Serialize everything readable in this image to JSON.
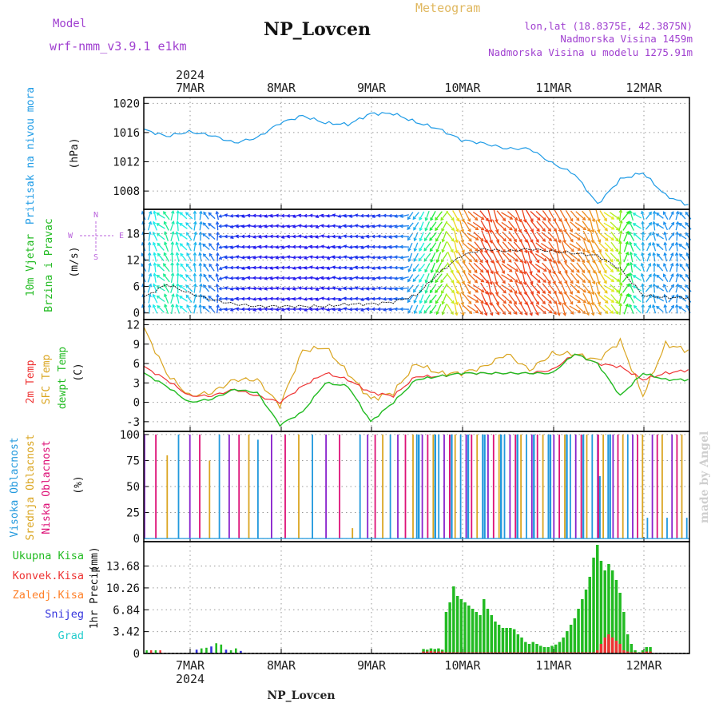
{
  "header": {
    "model_label": "Model",
    "model_name": "wrf-nmm_v3.9.1 e1km",
    "station": "NP_Lovcen",
    "meteogram": "Meteogram",
    "lonlat": "lon,lat (18.8375E, 42.3875N)",
    "elevation": "Nadmorska Visina 1459m",
    "model_elevation": "Nadmorska Visina u modelu 1275.91m",
    "watermark": "made by Angel",
    "footer_station": "NP_Lovcen"
  },
  "time_axis": {
    "year": "2024",
    "days": [
      "7MAR",
      "8MAR",
      "9MAR",
      "10MAR",
      "11MAR",
      "12MAR"
    ]
  },
  "colors": {
    "pressure": "#1e9be6",
    "temp2m": "#ee3333",
    "sfc_temp": "#daa520",
    "dewpoint": "#22bb22",
    "cloud_high": "#2299dd",
    "cloud_mid": "#daa520",
    "cloud_low": "#dd1177",
    "cloud_extra": "#8822cc",
    "rain_total": "#22bb22",
    "rain_conv": "#ee3333",
    "freezing": "#ff7f27",
    "snow": "#3333dd",
    "graupel": "#22cccc",
    "wind_label": "#22bb22",
    "compass": "#bb66dd"
  },
  "chart_data": [
    {
      "type": "line",
      "name": "pressure",
      "ylabel_1": "Pritisak na nivou mora",
      "ylabel_2": "(hPa)",
      "ylim": [
        1005.5,
        1020.8
      ],
      "yticks": [
        "1008",
        "1012",
        "1016",
        "1020"
      ],
      "x": [
        0,
        6,
        12,
        18,
        24,
        30,
        36,
        42,
        48,
        54,
        60,
        66,
        72,
        78,
        84,
        90,
        96,
        102,
        108,
        114,
        120,
        126,
        132,
        138,
        144
      ],
      "series": [
        {
          "values": [
            1016.4,
            1015.5,
            1016.1,
            1015.6,
            1014.6,
            1015.3,
            1017.3,
            1018.3,
            1017.3,
            1017.1,
            1018.6,
            1018.6,
            1017.4,
            1016.5,
            1015.0,
            1014.5,
            1013.8,
            1013.8,
            1011.8,
            1010.3,
            1006.2,
            1009.6,
            1010.5,
            1007.4,
            1006.1
          ]
        }
      ]
    },
    {
      "type": "line",
      "name": "wind",
      "ylabel_1": "10m Vjetar",
      "ylabel_2": "Brzina i Pravac",
      "ylabel_3": "(m/s)",
      "compass": {
        "n": "N",
        "s": "S",
        "e": "E",
        "w": "W"
      },
      "ylim": [
        -1.5,
        23.5
      ],
      "yticks": [
        "0",
        "6",
        "12",
        "18"
      ],
      "x": [
        0,
        6,
        12,
        18,
        24,
        30,
        36,
        42,
        48,
        54,
        60,
        66,
        72,
        78,
        84,
        90,
        96,
        102,
        108,
        114,
        120,
        126,
        132,
        138,
        144
      ],
      "series": [
        {
          "values": [
            3.5,
            6.5,
            4.5,
            3.0,
            2.0,
            1.5,
            1.5,
            1.5,
            1.5,
            2.0,
            2.0,
            2.5,
            4.0,
            9.0,
            13.0,
            14.5,
            14.0,
            14.5,
            14.0,
            13.5,
            13.0,
            10.0,
            4.0,
            3.5,
            3.5
          ]
        }
      ]
    },
    {
      "type": "line",
      "name": "temperature",
      "ylabel_1": "2m Temp",
      "ylabel_2": "SFC Temp",
      "ylabel_3": "dewpt Temp",
      "ylabel_4": "(C)",
      "ylim": [
        -4.5,
        12.8
      ],
      "yticks": [
        "-3",
        "0",
        "3",
        "6",
        "9",
        "12"
      ],
      "x": [
        0,
        6,
        12,
        18,
        24,
        30,
        36,
        42,
        48,
        54,
        60,
        66,
        72,
        78,
        84,
        90,
        96,
        102,
        108,
        114,
        120,
        126,
        132,
        138,
        144
      ],
      "series": [
        {
          "name": "2m Temp",
          "values": [
            5.5,
            3.5,
            1.0,
            1.0,
            2.0,
            1.0,
            0.0,
            2.5,
            4.5,
            3.5,
            1.5,
            1.0,
            4.0,
            4.0,
            4.5,
            4.5,
            4.5,
            4.5,
            5.0,
            7.5,
            6.0,
            5.5,
            3.5,
            4.5,
            5.0
          ]
        },
        {
          "name": "SFC Temp",
          "values": [
            11.5,
            4.5,
            1.0,
            1.5,
            3.5,
            3.5,
            -0.5,
            8.0,
            8.5,
            4.5,
            0.5,
            1.5,
            6.0,
            4.5,
            4.5,
            5.5,
            7.5,
            5.0,
            7.5,
            7.5,
            6.5,
            9.5,
            1.0,
            9.0,
            8.0
          ]
        },
        {
          "name": "dewpt Temp",
          "values": [
            4.5,
            2.5,
            0.0,
            0.5,
            2.0,
            1.5,
            -3.5,
            -1.5,
            3.0,
            2.5,
            -3.0,
            0.0,
            3.5,
            4.0,
            4.5,
            4.5,
            4.5,
            4.5,
            4.5,
            7.5,
            6.0,
            1.0,
            4.5,
            3.5,
            3.5
          ]
        }
      ]
    },
    {
      "type": "bar",
      "name": "cloud",
      "ylabel_1": "Visoka Oblacnost",
      "ylabel_2": "Srednja Oblacnost",
      "ylabel_3": "Niska Oblacnost",
      "ylabel_4": "(%)",
      "ylim": [
        -3,
        103
      ],
      "yticks": [
        "0",
        "25",
        "50",
        "75",
        "100"
      ],
      "series": [
        {
          "name": "Visoka Oblacnost",
          "values": [
            100,
            100,
            100,
            100,
            100,
            100,
            100,
            100,
            100,
            100,
            95,
            95,
            100,
            100,
            100,
            100,
            100,
            100,
            100,
            100,
            100,
            100,
            100,
            100,
            100,
            100,
            100,
            100,
            100,
            100,
            100,
            100,
            100,
            100,
            100,
            100,
            100,
            100,
            100,
            100,
            100,
            100,
            100,
            100,
            100,
            100,
            100,
            100,
            100,
            100,
            100,
            100,
            100,
            100,
            100,
            100,
            100,
            100,
            65,
            100,
            60,
            100,
            100,
            100,
            100,
            100,
            100,
            100,
            100,
            100,
            15,
            20,
            20,
            20,
            20,
            20,
            20,
            20,
            20,
            20,
            20,
            20,
            20,
            20
          ]
        },
        {
          "name": "Srednja Oblacnost",
          "values": [
            75,
            100,
            80,
            100,
            100,
            100,
            75,
            100,
            100,
            100,
            100,
            10,
            100,
            100,
            100,
            100,
            100,
            100,
            10,
            100,
            100,
            100,
            100,
            100,
            100,
            100,
            100,
            100,
            100,
            100,
            100,
            100,
            100,
            100,
            100,
            100,
            100,
            100,
            100,
            100,
            100,
            100,
            100,
            100,
            100,
            100,
            100,
            100,
            100,
            100,
            100,
            100,
            100,
            100,
            100,
            100,
            100,
            100,
            100,
            100,
            100,
            100,
            100,
            100,
            100,
            100,
            100,
            100,
            100,
            100,
            100,
            100,
            100,
            100,
            100,
            100,
            100,
            100,
            100,
            100,
            100,
            100,
            100,
            100
          ]
        },
        {
          "name": "Niska Oblacnost",
          "values": [
            90,
            100,
            100,
            10,
            100,
            100,
            5,
            100,
            100,
            100,
            100,
            100,
            95,
            100,
            100,
            100,
            100,
            100,
            100,
            100,
            100,
            100,
            100,
            100,
            100,
            100,
            100,
            100,
            100,
            100,
            100,
            100,
            100,
            100,
            100,
            100,
            100,
            100,
            100,
            100,
            100,
            100,
            100,
            100,
            100,
            100,
            100,
            100,
            100,
            100,
            100,
            100,
            100,
            100,
            100,
            100,
            100,
            100,
            100,
            100,
            100,
            100,
            100,
            100,
            100,
            100,
            100,
            100,
            100,
            100,
            100,
            100,
            100,
            100,
            100,
            100,
            100,
            100,
            100,
            100,
            100,
            100,
            100,
            100
          ]
        },
        {
          "name": "extra",
          "values": [
            100,
            100,
            85,
            100,
            100,
            100,
            100,
            100,
            100,
            90,
            100,
            100,
            100,
            100,
            100,
            100,
            100,
            100,
            100,
            100,
            100,
            100,
            100,
            100,
            100,
            100,
            100,
            100,
            100,
            100,
            100,
            100,
            100,
            100,
            100,
            100,
            100,
            100,
            100,
            100,
            100,
            100,
            100,
            100,
            100,
            100,
            100,
            100,
            100,
            100,
            100,
            100,
            100,
            100,
            100,
            100,
            100,
            100,
            100,
            100,
            100,
            100,
            100,
            100,
            100,
            100,
            100,
            100,
            100,
            100,
            100,
            100,
            100,
            100,
            100,
            100,
            100,
            100,
            100,
            100,
            100,
            100,
            100,
            100
          ]
        }
      ]
    },
    {
      "type": "bar",
      "name": "precipitation",
      "ylabel_1": "1hr Precip",
      "ylabel_2": "(mm)",
      "legend": [
        "Ukupna Kisa",
        "Konvek.Kisa",
        "Zaledj.Kisa",
        "Snijeg",
        "Grad"
      ],
      "ylim": [
        0,
        17.5
      ],
      "yticks": [
        "0",
        "3.42",
        "6.84",
        "10.26",
        "13.68"
      ],
      "xticks": [
        "7MAR",
        "8MAR",
        "9MAR",
        "10MAR",
        "11MAR",
        "12MAR"
      ],
      "x0": 74,
      "rain_total": [
        0.7,
        0.6,
        0.8,
        0.7,
        0.8,
        0.6,
        6.5,
        8.0,
        10.5,
        9.0,
        8.5,
        8.0,
        7.5,
        7.0,
        6.5,
        6.0,
        8.5,
        7.0,
        6.0,
        5.0,
        4.5,
        4.0,
        4.0,
        4.0,
        3.8,
        3.0,
        2.5,
        1.8,
        1.5,
        1.8,
        1.5,
        1.2,
        1.0,
        1.0,
        1.2,
        1.4,
        1.8,
        2.5,
        3.5,
        4.5,
        5.5,
        7.0,
        8.5,
        10.0,
        12.0,
        15.0,
        17.0,
        14.5,
        13.0,
        14.0,
        13.0,
        11.5,
        9.5,
        6.5,
        3.0,
        1.5,
        0.5,
        0.2,
        0.5,
        1.0,
        1.0
      ],
      "rain_conv": [
        0.3,
        0.3,
        0.4,
        0.3,
        0.3,
        0.3,
        0.2,
        0.2,
        0.2,
        0.2,
        0.2,
        0.2,
        0.2,
        0.2,
        0.2,
        0.2,
        0.2,
        0.2,
        0.2,
        0.2,
        0.2,
        0.2,
        0.2,
        0.2,
        0.2,
        0.2,
        0.2,
        0.2,
        0.2,
        0.2,
        0.2,
        0.2,
        0.2,
        0.2,
        0.2,
        0.2,
        0.2,
        0.2,
        0.2,
        0.2,
        0.2,
        0.2,
        0.2,
        0.2,
        0.2,
        0.2,
        0.5,
        1.5,
        2.5,
        3.0,
        2.5,
        2.0,
        1.5,
        0.5,
        0.3,
        0.2,
        0.2,
        0.1,
        0.2,
        0.3,
        0.3
      ],
      "snow": [
        0.6,
        0.8,
        0.9,
        1.1,
        1.6,
        1.4,
        0.6,
        0.5,
        0.8,
        0.4
      ]
    }
  ]
}
